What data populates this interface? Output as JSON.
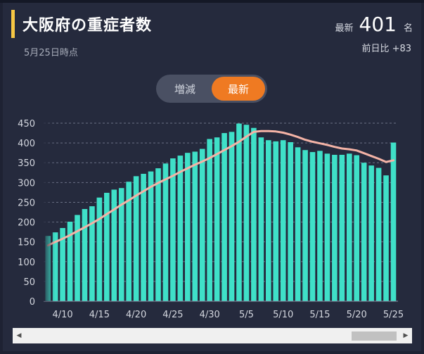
{
  "header": {
    "title": "大阪府の重症者数",
    "as_of": "5月25日時点",
    "latest_label": "最新",
    "latest_value": "401",
    "latest_unit": "名",
    "delta_label": "前日比",
    "delta_value": "+83"
  },
  "toggle": {
    "options": [
      "増減",
      "最新"
    ],
    "selected": "最新"
  },
  "colors": {
    "accent": "#f6c744",
    "bar": "#3fe0c8",
    "moving_average": "#f4b3a6",
    "toggle_active": "#ef7a22",
    "background": "#252a3d"
  },
  "chart_data": {
    "type": "bar",
    "ylim": [
      0,
      450
    ],
    "yticks": [
      0,
      50,
      100,
      150,
      200,
      250,
      300,
      350,
      400,
      450
    ],
    "xtick_labels": [
      "4/10",
      "4/15",
      "4/20",
      "4/25",
      "4/30",
      "5/5",
      "5/10",
      "5/15",
      "5/20",
      "5/25"
    ],
    "categories": [
      "4/8",
      "4/9",
      "4/10",
      "4/11",
      "4/12",
      "4/13",
      "4/14",
      "4/15",
      "4/16",
      "4/17",
      "4/18",
      "4/19",
      "4/20",
      "4/21",
      "4/22",
      "4/23",
      "4/24",
      "4/25",
      "4/26",
      "4/27",
      "4/28",
      "4/29",
      "4/30",
      "5/1",
      "5/2",
      "5/3",
      "5/4",
      "5/5",
      "5/6",
      "5/7",
      "5/8",
      "5/9",
      "5/10",
      "5/11",
      "5/12",
      "5/13",
      "5/14",
      "5/15",
      "5/16",
      "5/17",
      "5/18",
      "5/19",
      "5/20",
      "5/21",
      "5/22",
      "5/23",
      "5/24",
      "5/25"
    ],
    "series": [
      {
        "type": "bar",
        "values": [
          165,
          174,
          185,
          201,
          218,
          233,
          240,
          262,
          274,
          282,
          286,
          302,
          316,
          322,
          328,
          336,
          348,
          361,
          368,
          375,
          378,
          385,
          410,
          414,
          425,
          428,
          449,
          446,
          438,
          414,
          407,
          404,
          407,
          402,
          389,
          382,
          377,
          380,
          373,
          370,
          370,
          373,
          369,
          350,
          343,
          337,
          318,
          401
        ]
      },
      {
        "type": "line",
        "values": [
          141,
          150,
          158,
          167,
          177,
          187,
          197,
          208,
          220,
          232,
          244,
          255,
          267,
          278,
          289,
          299,
          308,
          317,
          327,
          336,
          345,
          353,
          362,
          372,
          382,
          392,
          403,
          416,
          428,
          430,
          430,
          429,
          426,
          421,
          415,
          408,
          403,
          399,
          395,
          390,
          386,
          384,
          381,
          374,
          367,
          360,
          352,
          356
        ]
      }
    ]
  }
}
